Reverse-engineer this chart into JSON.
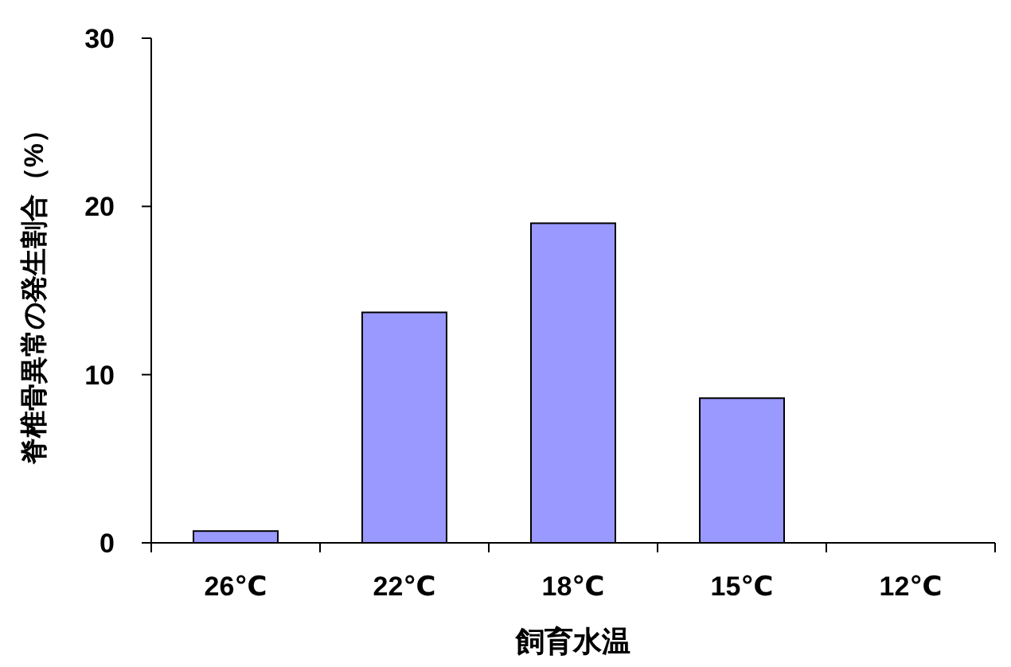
{
  "chart_data": {
    "type": "bar",
    "xlabel": "飼育水温",
    "ylabel": "脊椎骨異常の発生割合（%）",
    "categories": [
      "26℃",
      "22℃",
      "18℃",
      "15℃",
      "12℃"
    ],
    "values": [
      0.7,
      13.7,
      19.0,
      8.6,
      0
    ],
    "color": "#9999ff",
    "ylim": [
      0,
      30
    ],
    "yticks": [
      0,
      10,
      20,
      30
    ],
    "grid": false
  }
}
